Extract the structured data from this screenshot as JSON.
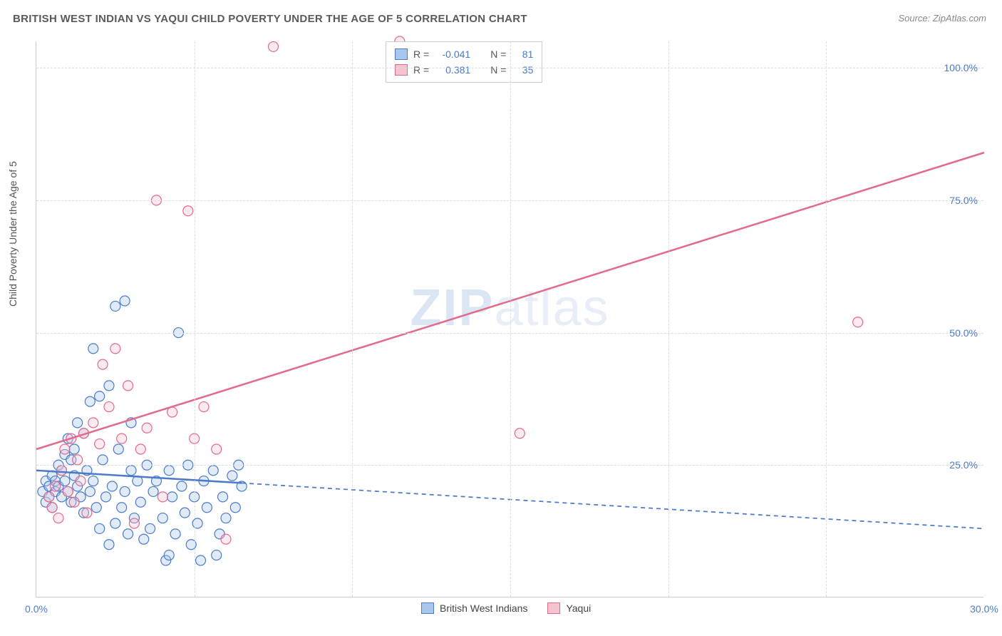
{
  "title": "BRITISH WEST INDIAN VS YAQUI CHILD POVERTY UNDER THE AGE OF 5 CORRELATION CHART",
  "source": "Source: ZipAtlas.com",
  "y_axis_label": "Child Poverty Under the Age of 5",
  "watermark_zip": "ZIP",
  "watermark_atlas": "atlas",
  "chart": {
    "type": "scatter-with-regression",
    "background_color": "#ffffff",
    "grid_color": "#dddddd",
    "axis_color": "#cccccc",
    "tick_label_color": "#4a7bc8",
    "tick_fontsize": 14,
    "title_fontsize": 15,
    "title_color": "#5a5a5a",
    "xlim": [
      0,
      30
    ],
    "ylim": [
      0,
      105
    ],
    "x_ticks": [
      0,
      30
    ],
    "x_tick_labels": [
      "0.0%",
      "30.0%"
    ],
    "x_gridlines": [
      5,
      10,
      15,
      20,
      25
    ],
    "y_ticks": [
      25,
      50,
      75,
      100
    ],
    "y_tick_labels": [
      "25.0%",
      "50.0%",
      "75.0%",
      "100.0%"
    ],
    "marker_radius": 7,
    "marker_fill_opacity": 0.35,
    "marker_stroke_width": 1.2,
    "series": [
      {
        "name": "British West Indians",
        "color_fill": "#a9c7ec",
        "color_stroke": "#4a7bc8",
        "r_value": "-0.041",
        "n_value": "81",
        "regression": {
          "x1": 0,
          "y1": 24,
          "x2": 30,
          "y2": 13,
          "solid_to_x": 6.5,
          "line_width": 2.5,
          "dash": "6,5"
        },
        "points": [
          [
            0.2,
            20
          ],
          [
            0.3,
            22
          ],
          [
            0.3,
            18
          ],
          [
            0.4,
            21
          ],
          [
            0.4,
            19
          ],
          [
            0.5,
            23
          ],
          [
            0.5,
            17
          ],
          [
            0.6,
            20
          ],
          [
            0.6,
            22
          ],
          [
            0.7,
            25
          ],
          [
            0.7,
            21
          ],
          [
            0.8,
            19
          ],
          [
            0.8,
            24
          ],
          [
            0.9,
            27
          ],
          [
            0.9,
            22
          ],
          [
            1.0,
            30
          ],
          [
            1.0,
            20
          ],
          [
            1.1,
            26
          ],
          [
            1.1,
            18
          ],
          [
            1.2,
            23
          ],
          [
            1.2,
            28
          ],
          [
            1.3,
            21
          ],
          [
            1.3,
            33
          ],
          [
            1.4,
            19
          ],
          [
            1.5,
            31
          ],
          [
            1.5,
            16
          ],
          [
            1.6,
            24
          ],
          [
            1.7,
            37
          ],
          [
            1.7,
            20
          ],
          [
            1.8,
            22
          ],
          [
            1.8,
            47
          ],
          [
            1.9,
            17
          ],
          [
            2.0,
            38
          ],
          [
            2.0,
            13
          ],
          [
            2.1,
            26
          ],
          [
            2.2,
            19
          ],
          [
            2.3,
            40
          ],
          [
            2.3,
            10
          ],
          [
            2.4,
            21
          ],
          [
            2.5,
            14
          ],
          [
            2.5,
            55
          ],
          [
            2.6,
            28
          ],
          [
            2.7,
            17
          ],
          [
            2.8,
            56
          ],
          [
            2.8,
            20
          ],
          [
            2.9,
            12
          ],
          [
            3.0,
            24
          ],
          [
            3.0,
            33
          ],
          [
            3.1,
            15
          ],
          [
            3.2,
            22
          ],
          [
            3.3,
            18
          ],
          [
            3.4,
            11
          ],
          [
            3.5,
            25
          ],
          [
            3.6,
            13
          ],
          [
            3.7,
            20
          ],
          [
            3.8,
            22
          ],
          [
            4.0,
            15
          ],
          [
            4.1,
            7
          ],
          [
            4.2,
            24
          ],
          [
            4.3,
            19
          ],
          [
            4.4,
            12
          ],
          [
            4.5,
            50
          ],
          [
            4.6,
            21
          ],
          [
            4.7,
            16
          ],
          [
            4.8,
            25
          ],
          [
            4.9,
            10
          ],
          [
            5.0,
            19
          ],
          [
            5.1,
            14
          ],
          [
            5.3,
            22
          ],
          [
            5.4,
            17
          ],
          [
            5.6,
            24
          ],
          [
            5.7,
            8
          ],
          [
            5.8,
            12
          ],
          [
            5.9,
            19
          ],
          [
            6.0,
            15
          ],
          [
            6.2,
            23
          ],
          [
            6.3,
            17
          ],
          [
            6.4,
            25
          ],
          [
            6.5,
            21
          ],
          [
            4.2,
            8
          ],
          [
            5.2,
            7
          ]
        ]
      },
      {
        "name": "Yaqui",
        "color_fill": "#f3c4d0",
        "color_stroke": "#e26a8a",
        "r_value": "0.381",
        "n_value": "35",
        "regression": {
          "x1": 0,
          "y1": 28,
          "x2": 30,
          "y2": 84,
          "solid_to_x": 30,
          "line_width": 2.5,
          "dash": ""
        },
        "points": [
          [
            0.4,
            19
          ],
          [
            0.5,
            17
          ],
          [
            0.6,
            21
          ],
          [
            0.7,
            15
          ],
          [
            0.8,
            24
          ],
          [
            0.9,
            28
          ],
          [
            1.0,
            20
          ],
          [
            1.1,
            30
          ],
          [
            1.2,
            18
          ],
          [
            1.3,
            26
          ],
          [
            1.4,
            22
          ],
          [
            1.5,
            31
          ],
          [
            1.6,
            16
          ],
          [
            1.8,
            33
          ],
          [
            2.0,
            29
          ],
          [
            2.1,
            44
          ],
          [
            2.3,
            36
          ],
          [
            2.5,
            47
          ],
          [
            2.7,
            30
          ],
          [
            2.9,
            40
          ],
          [
            3.1,
            14
          ],
          [
            3.3,
            28
          ],
          [
            3.5,
            32
          ],
          [
            3.8,
            75
          ],
          [
            4.0,
            19
          ],
          [
            4.3,
            35
          ],
          [
            4.8,
            73
          ],
          [
            5.0,
            30
          ],
          [
            5.3,
            36
          ],
          [
            5.7,
            28
          ],
          [
            6.0,
            11
          ],
          [
            7.5,
            104
          ],
          [
            11.5,
            105
          ],
          [
            15.3,
            31
          ],
          [
            26.0,
            52
          ]
        ]
      }
    ]
  },
  "legend_top": {
    "r_label": "R =",
    "n_label": "N ="
  },
  "legend_bottom": {
    "items": [
      "British West Indians",
      "Yaqui"
    ]
  }
}
